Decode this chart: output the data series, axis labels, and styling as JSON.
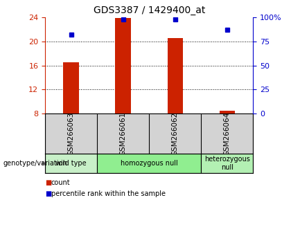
{
  "title": "GDS3387 / 1429400_at",
  "samples": [
    "GSM266063",
    "GSM266061",
    "GSM266062",
    "GSM266064"
  ],
  "bar_bottom": 8,
  "bar_tops": [
    16.5,
    23.9,
    20.5,
    8.5
  ],
  "blue_pct": [
    82,
    98,
    98,
    87
  ],
  "ylim_left": [
    8,
    24
  ],
  "ylim_right": [
    0,
    100
  ],
  "yticks_left": [
    8,
    12,
    16,
    20,
    24
  ],
  "yticks_right": [
    0,
    25,
    50,
    75,
    100
  ],
  "ytick_labels_right": [
    "0",
    "25",
    "50",
    "75",
    "100%"
  ],
  "bar_color": "#cc2200",
  "blue_color": "#0000cc",
  "sample_bg_color": "#d3d3d3",
  "axis_color_left": "#cc2200",
  "axis_color_right": "#0000cc",
  "legend_count_color": "#cc2200",
  "legend_pct_color": "#0000cc",
  "genotype_label": "genotype/variation",
  "legend_count": "count",
  "legend_pct": "percentile rank within the sample",
  "group_defs": [
    {
      "label": "wild type",
      "start": 0,
      "end": 1,
      "color": "#c8f0c8"
    },
    {
      "label": "homozygous null",
      "start": 1,
      "end": 3,
      "color": "#90ee90"
    },
    {
      "label": "heterozygous\nnull",
      "start": 3,
      "end": 4,
      "color": "#b3f0b3"
    }
  ]
}
